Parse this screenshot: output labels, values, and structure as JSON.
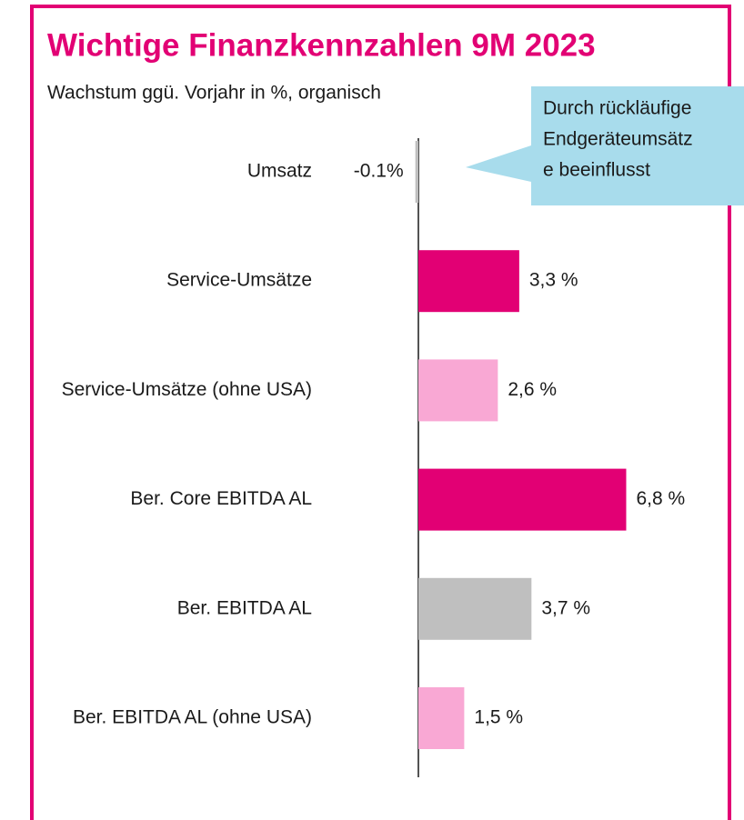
{
  "chart_data": {
    "type": "bar",
    "orientation": "horizontal",
    "title": "Wichtige Finanzkennzahlen 9M 2023",
    "subtitle": "Wachstum ggü. Vorjahr in %, organisch",
    "categories": [
      "Umsatz",
      "Service-Umsätze",
      "Service-Umsätze (ohne USA)",
      "Ber. Core EBITDA AL",
      "Ber. EBITDA AL",
      "Ber. EBITDA AL (ohne USA)"
    ],
    "values": [
      -0.1,
      3.3,
      2.6,
      6.8,
      3.7,
      1.5
    ],
    "value_labels": [
      "-0.1%",
      "3,3 %",
      "2,6 %",
      "6,8 %",
      "3,7 %",
      "1,5 %"
    ],
    "colors": [
      "#bfbfbf",
      "#e20074",
      "#f9a8d4",
      "#e20074",
      "#bfbfbf",
      "#f9a8d4"
    ],
    "annotation": [
      "Durch rückläufige",
      "Endgeräteumsätz",
      "e beeinflusst"
    ]
  }
}
